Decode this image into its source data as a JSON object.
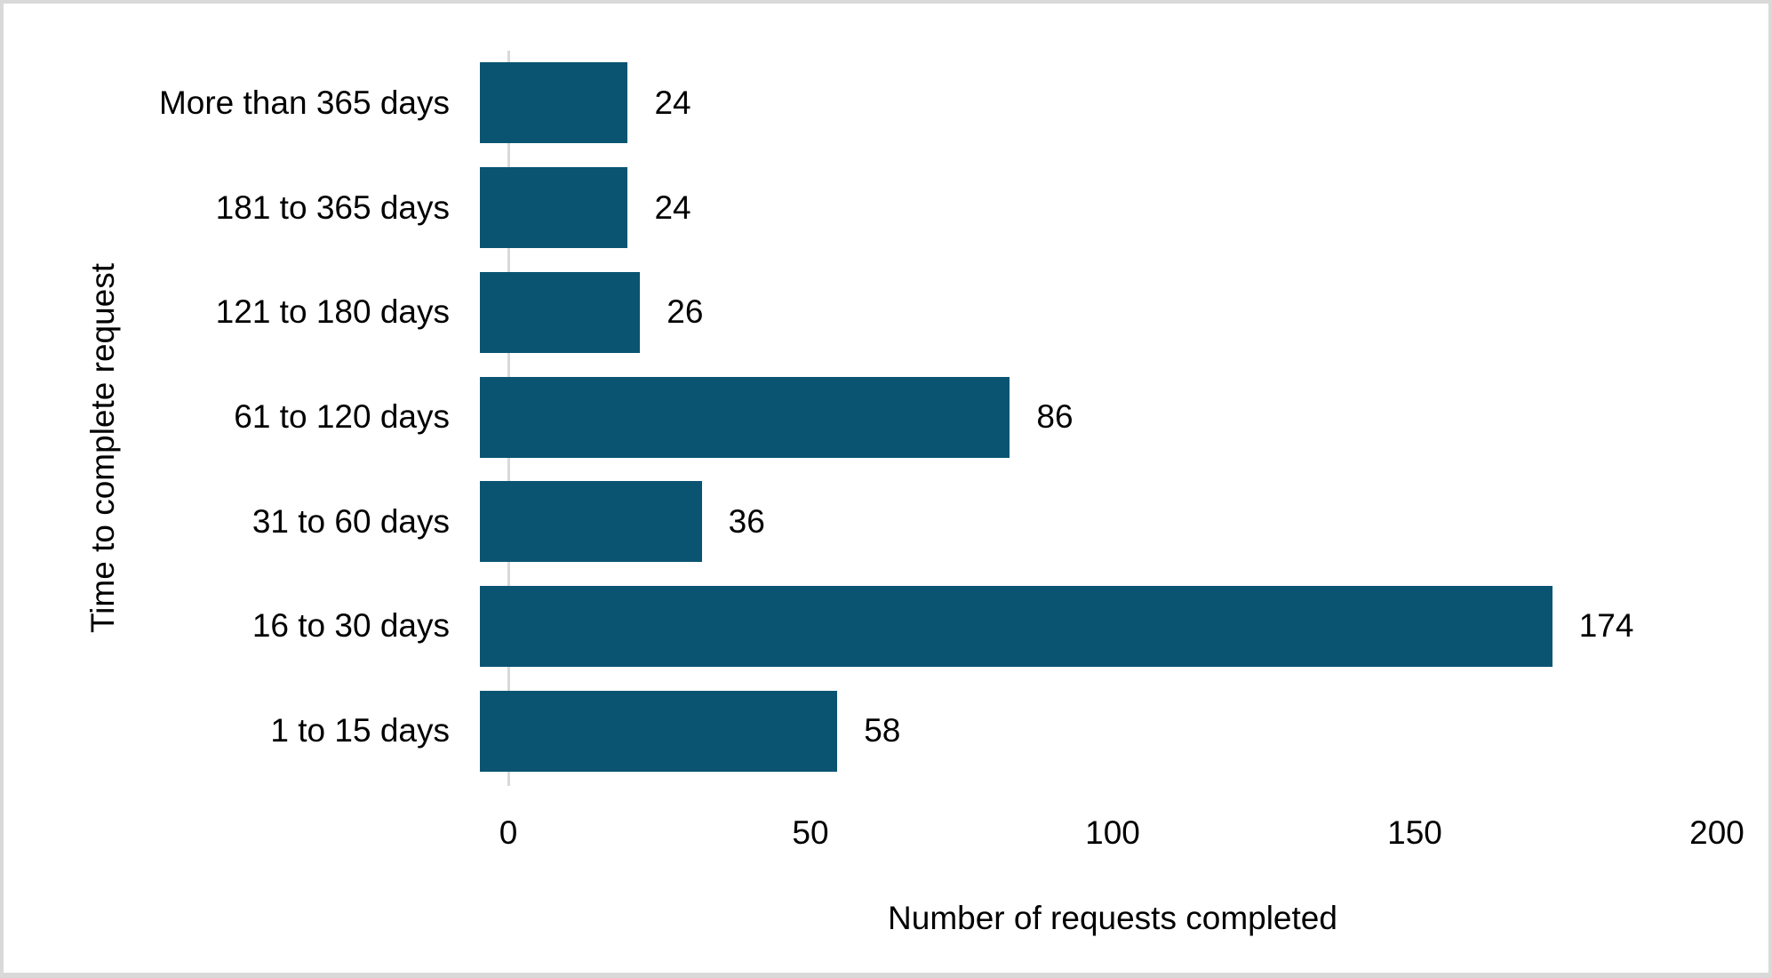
{
  "chart_data": {
    "type": "bar",
    "orientation": "horizontal",
    "title": "",
    "categories": [
      "More than 365 days",
      "181 to 365 days",
      "121 to 180 days",
      "61 to 120 days",
      "31 to 60 days",
      "16 to 30 days",
      "1 to 15 days"
    ],
    "values": [
      24,
      24,
      26,
      86,
      36,
      174,
      58
    ],
    "data_labels": [
      "24",
      "24",
      "26",
      "86",
      "36",
      "174",
      "58"
    ],
    "xlabel": "Number of requests completed",
    "ylabel": "Time to complete request",
    "xlim": [
      0,
      200
    ],
    "xticks": [
      "0",
      "50",
      "100",
      "150",
      "200"
    ],
    "grid": false,
    "legend": false,
    "bar_color": "#0A5472",
    "axis_line_color": "#D9D9D9",
    "text_color": "#000000",
    "background_color": "#FFFFFF",
    "frame_color": "#D9D9D9"
  }
}
